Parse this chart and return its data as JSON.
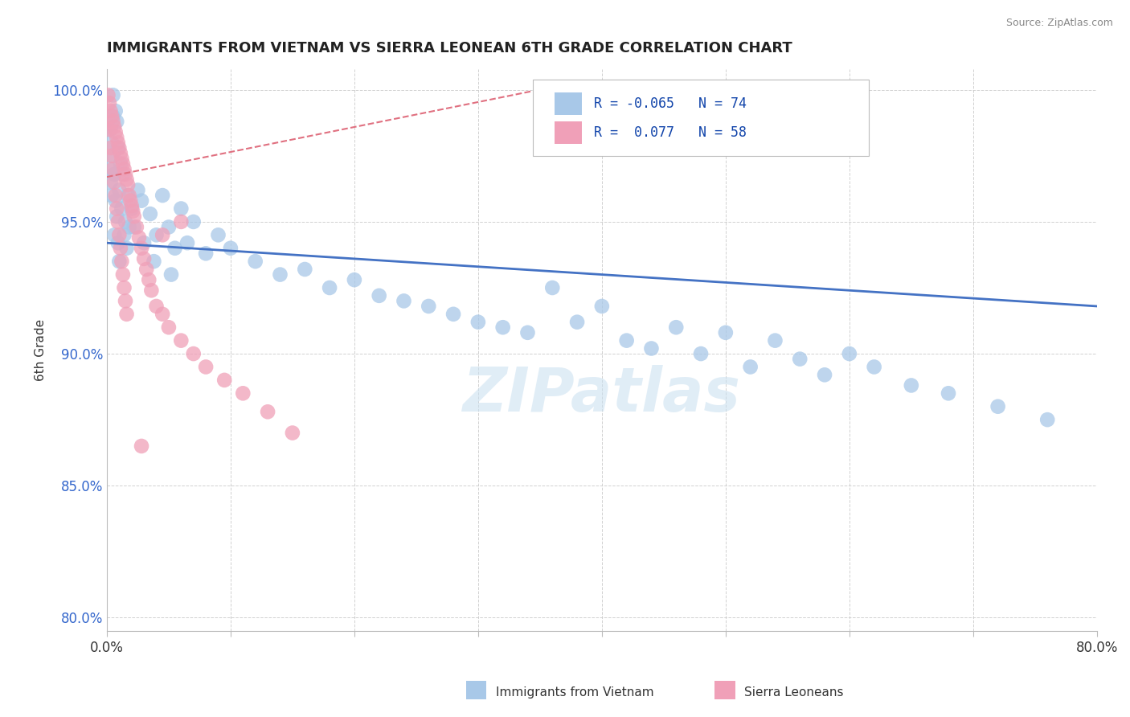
{
  "title": "IMMIGRANTS FROM VIETNAM VS SIERRA LEONEAN 6TH GRADE CORRELATION CHART",
  "source": "Source: ZipAtlas.com",
  "ylabel": "6th Grade",
  "xlim": [
    0.0,
    0.8
  ],
  "ylim_low": 0.795,
  "ylim_high": 1.008,
  "xticks": [
    0.0,
    0.1,
    0.2,
    0.3,
    0.4,
    0.5,
    0.6,
    0.7,
    0.8
  ],
  "yticks": [
    0.8,
    0.85,
    0.9,
    0.95,
    1.0
  ],
  "watermark": "ZIPatlas",
  "blue_color": "#A8C8E8",
  "pink_color": "#F0A0B8",
  "blue_line_color": "#4472C4",
  "pink_line_color": "#E07080",
  "blue_trend_y0": 0.942,
  "blue_trend_y1": 0.918,
  "pink_trend_x0": 0.0,
  "pink_trend_x1": 0.37,
  "pink_trend_y0": 0.967,
  "pink_trend_y1": 1.002,
  "legend_blue_r": "R = -0.065",
  "legend_blue_n": "N = 74",
  "legend_pink_r": "R =  0.077",
  "legend_pink_n": "N = 58",
  "viet_x": [
    0.002,
    0.003,
    0.003,
    0.004,
    0.004,
    0.005,
    0.005,
    0.005,
    0.006,
    0.006,
    0.007,
    0.007,
    0.008,
    0.008,
    0.009,
    0.009,
    0.01,
    0.01,
    0.011,
    0.012,
    0.013,
    0.014,
    0.015,
    0.016,
    0.017,
    0.018,
    0.02,
    0.022,
    0.025,
    0.028,
    0.03,
    0.035,
    0.04,
    0.045,
    0.05,
    0.055,
    0.06,
    0.065,
    0.07,
    0.08,
    0.09,
    0.1,
    0.12,
    0.14,
    0.16,
    0.18,
    0.2,
    0.22,
    0.24,
    0.26,
    0.28,
    0.3,
    0.32,
    0.34,
    0.36,
    0.38,
    0.4,
    0.42,
    0.44,
    0.46,
    0.48,
    0.5,
    0.52,
    0.54,
    0.56,
    0.58,
    0.6,
    0.62,
    0.65,
    0.68,
    0.72,
    0.76,
    0.038,
    0.052
  ],
  "viet_y": [
    0.97,
    0.965,
    0.985,
    0.98,
    0.96,
    0.998,
    0.99,
    0.975,
    0.968,
    0.945,
    0.992,
    0.958,
    0.988,
    0.952,
    0.978,
    0.942,
    0.962,
    0.935,
    0.972,
    0.955,
    0.968,
    0.945,
    0.95,
    0.94,
    0.96,
    0.948,
    0.955,
    0.948,
    0.962,
    0.958,
    0.942,
    0.953,
    0.945,
    0.96,
    0.948,
    0.94,
    0.955,
    0.942,
    0.95,
    0.938,
    0.945,
    0.94,
    0.935,
    0.93,
    0.932,
    0.925,
    0.928,
    0.922,
    0.92,
    0.918,
    0.915,
    0.912,
    0.91,
    0.908,
    0.925,
    0.912,
    0.918,
    0.905,
    0.902,
    0.91,
    0.9,
    0.908,
    0.895,
    0.905,
    0.898,
    0.892,
    0.9,
    0.895,
    0.888,
    0.885,
    0.88,
    0.875,
    0.935,
    0.93
  ],
  "sierra_x": [
    0.001,
    0.002,
    0.002,
    0.003,
    0.003,
    0.004,
    0.004,
    0.005,
    0.005,
    0.006,
    0.006,
    0.007,
    0.007,
    0.008,
    0.008,
    0.009,
    0.009,
    0.01,
    0.01,
    0.011,
    0.011,
    0.012,
    0.012,
    0.013,
    0.013,
    0.014,
    0.014,
    0.015,
    0.015,
    0.016,
    0.016,
    0.017,
    0.018,
    0.019,
    0.02,
    0.021,
    0.022,
    0.024,
    0.026,
    0.028,
    0.03,
    0.032,
    0.034,
    0.036,
    0.04,
    0.045,
    0.05,
    0.06,
    0.07,
    0.08,
    0.095,
    0.11,
    0.13,
    0.15,
    0.06,
    0.045,
    0.37,
    0.028
  ],
  "sierra_y": [
    0.998,
    0.995,
    0.985,
    0.992,
    0.978,
    0.99,
    0.975,
    0.988,
    0.97,
    0.986,
    0.965,
    0.984,
    0.96,
    0.982,
    0.955,
    0.98,
    0.95,
    0.978,
    0.945,
    0.976,
    0.94,
    0.974,
    0.935,
    0.972,
    0.93,
    0.97,
    0.925,
    0.968,
    0.92,
    0.966,
    0.915,
    0.964,
    0.96,
    0.958,
    0.956,
    0.954,
    0.952,
    0.948,
    0.944,
    0.94,
    0.936,
    0.932,
    0.928,
    0.924,
    0.918,
    0.915,
    0.91,
    0.905,
    0.9,
    0.895,
    0.89,
    0.885,
    0.878,
    0.87,
    0.95,
    0.945,
    1.001,
    0.865
  ]
}
